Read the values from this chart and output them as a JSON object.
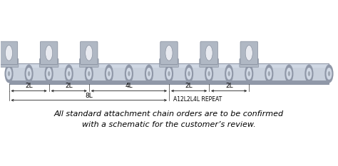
{
  "bg_color": "#ffffff",
  "chain_plate_color": "#b8bfcc",
  "chain_plate_edge": "#888fa0",
  "chain_link_light": "#c8d0dc",
  "chain_link_dark": "#9098a8",
  "chain_pin_color": "#a0a8b4",
  "chain_pin_shine": "#d0d8e4",
  "attach_body_color": "#b0b8c4",
  "attach_edge_color": "#808898",
  "attach_hole_color": "#e8eaf0",
  "roller_color": "#9098a8",
  "roller_shine": "#c8d0dc",
  "text_color": "#000000",
  "caption_line1": "All standard attachment chain orders are to be confirmed",
  "caption_line2": "with a schematic for the customer’s review.",
  "repeat_label": "A12L2L4L REPEAT",
  "dim_label_bottom": "8L",
  "caption_fontsize": 8.0,
  "repeat_fontsize": 5.5,
  "dim_fontsize": 6.5
}
